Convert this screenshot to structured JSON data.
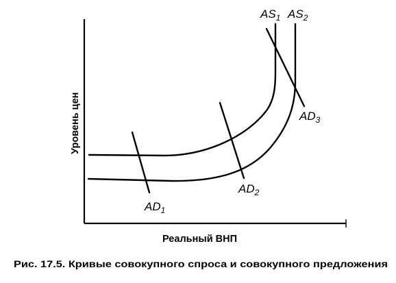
{
  "diagram": {
    "y_axis_label": "Уровень цен",
    "x_axis_label": "Реальный ВНП",
    "caption": "Рис. 17.5. Кривые совокупного спроса и совокупного предложения",
    "curves": {
      "as1": {
        "main": "AS",
        "sub": "1"
      },
      "as2": {
        "main": "AS",
        "sub": "2"
      },
      "ad1": {
        "main": "AD",
        "sub": "1"
      },
      "ad2": {
        "main": "AD",
        "sub": "2"
      },
      "ad3": {
        "main": "AD",
        "sub": "3"
      }
    }
  }
}
